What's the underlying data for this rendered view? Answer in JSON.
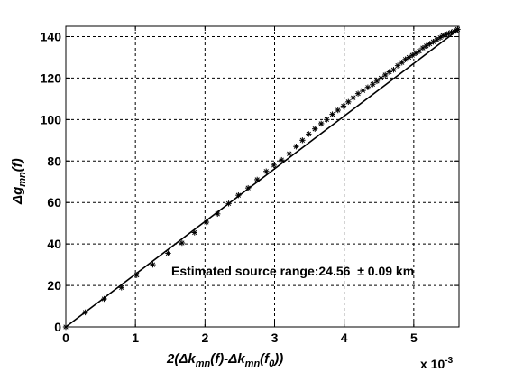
{
  "chart_data": {
    "type": "scatter",
    "x_exponent_label": "x 10",
    "x_exponent_power": "-3",
    "xlim": [
      0,
      5.65
    ],
    "ylim": [
      0,
      145
    ],
    "xticks": [
      "0",
      "1",
      "2",
      "3",
      "4",
      "5"
    ],
    "yticks": [
      "0",
      "20",
      "40",
      "60",
      "80",
      "100",
      "120",
      "140"
    ],
    "grid": true,
    "xlabel": {
      "pre": "2(Δk",
      "sub1": "mn",
      "mid": "(f)-Δk",
      "sub2": "mn",
      "mid2": "(f",
      "sub3": "0",
      "post": "))"
    },
    "ylabel": {
      "pre": "Δg",
      "sub": "mn",
      "post": "(f)"
    },
    "annotation": "Estimated source range:24.56  ± 0.09 km",
    "series": [
      {
        "kind": "markers",
        "marker": "*",
        "x": [
          0.0,
          0.28,
          0.55,
          0.8,
          1.02,
          1.25,
          1.47,
          1.67,
          1.85,
          2.02,
          2.18,
          2.34,
          2.48,
          2.62,
          2.75,
          2.88,
          2.99,
          3.1,
          3.21,
          3.31,
          3.4,
          3.49,
          3.58,
          3.67,
          3.75,
          3.83,
          3.91,
          3.99,
          4.06,
          4.13,
          4.2,
          4.27,
          4.34,
          4.41,
          4.47,
          4.53,
          4.59,
          4.65,
          4.71,
          4.77,
          4.83,
          4.88,
          4.93,
          4.98,
          5.03,
          5.08,
          5.13,
          5.18,
          5.23,
          5.28,
          5.33,
          5.38,
          5.42,
          5.46,
          5.5,
          5.54,
          5.58,
          5.61,
          5.63
        ],
        "y": [
          0,
          7,
          13.5,
          19,
          25,
          30,
          35.5,
          40.5,
          45.5,
          50.5,
          54.5,
          59.5,
          63.5,
          67,
          71,
          75,
          78,
          80.5,
          83.5,
          87,
          90,
          93,
          95.5,
          98,
          100,
          102.5,
          104.5,
          106.5,
          108.5,
          110.5,
          112.5,
          114,
          115.5,
          117,
          118.5,
          120,
          121.5,
          123,
          124,
          126,
          127.5,
          129,
          130,
          131,
          132,
          133,
          134.5,
          135.5,
          136.5,
          137.5,
          138.5,
          139.5,
          140.5,
          141,
          141.5,
          142,
          142.5,
          143,
          143.5
        ]
      },
      {
        "kind": "line",
        "x": [
          0,
          5.65
        ],
        "y": [
          0,
          143.6
        ]
      }
    ]
  }
}
